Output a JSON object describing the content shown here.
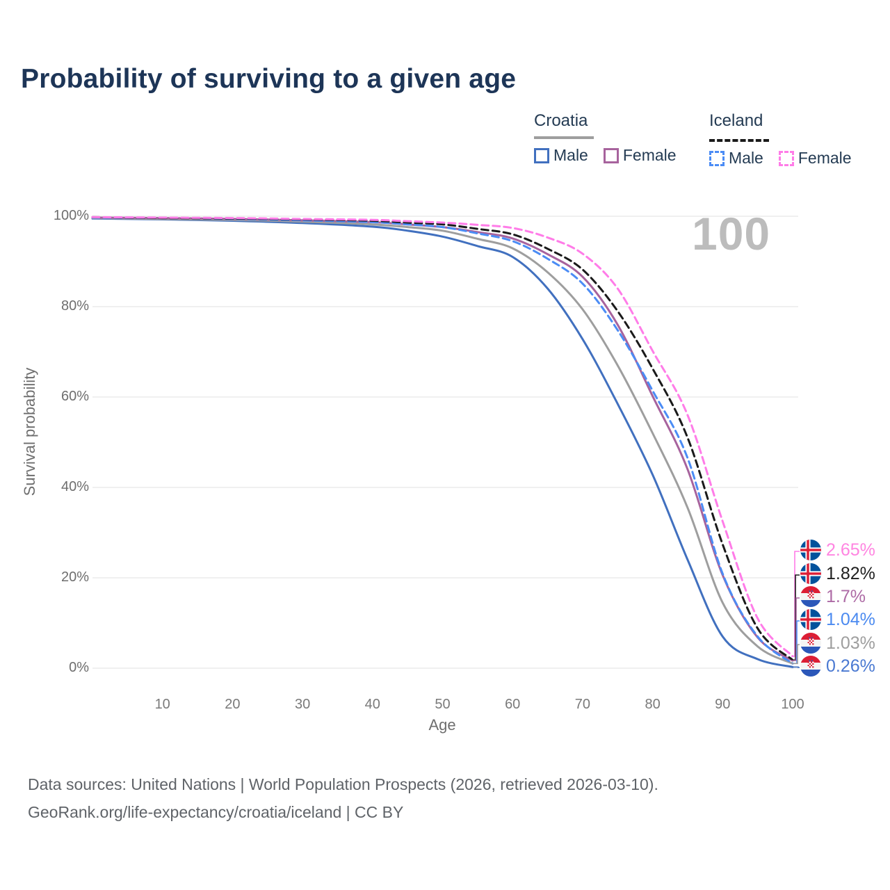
{
  "title": "Probability of surviving to a given age",
  "watermark": "100",
  "legend": {
    "groups": [
      {
        "name": "Croatia",
        "underline_style": "solid",
        "underline_color": "#9e9e9e",
        "items": [
          {
            "label": "Male",
            "color": "#4170bf",
            "dashed": false
          },
          {
            "label": "Female",
            "color": "#a7639d",
            "dashed": false
          }
        ]
      },
      {
        "name": "Iceland",
        "underline_style": "dashed",
        "underline_color": "#1a1a1a",
        "items": [
          {
            "label": "Male",
            "color": "#4b8cf5",
            "dashed": true
          },
          {
            "label": "Female",
            "color": "#ff7ce8",
            "dashed": true
          }
        ]
      }
    ]
  },
  "chart_data": {
    "type": "line",
    "title": "Probability of surviving to a given age",
    "xlabel": "Age",
    "ylabel": "Survival probability",
    "xlim": [
      0,
      100
    ],
    "ylim": [
      0,
      100
    ],
    "x_ticks": [
      10,
      20,
      30,
      40,
      50,
      60,
      70,
      80,
      90,
      100
    ],
    "y_ticks_percent": [
      0,
      20,
      40,
      60,
      80,
      100
    ],
    "grid": "horizontal-only",
    "legend_position": "top-right",
    "x": [
      0,
      10,
      20,
      30,
      40,
      45,
      50,
      55,
      60,
      65,
      70,
      75,
      80,
      85,
      90,
      95,
      100
    ],
    "series": [
      {
        "name": "Croatia Male",
        "country": "Croatia",
        "sex": "male",
        "style": "solid",
        "color": "#4170bf",
        "end_label": "0.26%",
        "values": [
          99.5,
          99.3,
          99.0,
          98.5,
          97.7,
          96.8,
          95.5,
          93.4,
          91.0,
          84.0,
          72.8,
          58.5,
          42.8,
          24.0,
          7.0,
          2.0,
          0.26
        ]
      },
      {
        "name": "Croatia",
        "country": "Croatia",
        "sex": "both",
        "style": "solid",
        "color": "#9e9e9e",
        "end_label": "1.03%",
        "values": [
          99.6,
          99.4,
          99.2,
          98.8,
          98.2,
          97.6,
          96.8,
          95.0,
          92.9,
          87.6,
          79.4,
          67.0,
          52.0,
          35.5,
          14.5,
          4.8,
          1.03
        ]
      },
      {
        "name": "Croatia Female",
        "country": "Croatia",
        "sex": "female",
        "style": "solid",
        "color": "#a7639d",
        "end_label": "1.7%",
        "values": [
          99.7,
          99.6,
          99.4,
          99.1,
          98.7,
          98.2,
          97.6,
          96.5,
          95.1,
          91.6,
          86.6,
          76.0,
          60.2,
          44.0,
          20.6,
          6.8,
          1.7
        ]
      },
      {
        "name": "Iceland Male",
        "country": "Iceland",
        "sex": "male",
        "style": "dashed",
        "color": "#4b8cf5",
        "end_label": "1.04%",
        "values": [
          99.7,
          99.6,
          99.4,
          99.1,
          98.7,
          98.2,
          97.6,
          96.2,
          94.5,
          90.6,
          85.1,
          74.8,
          61.4,
          46.5,
          20.9,
          7.0,
          1.04
        ]
      },
      {
        "name": "Iceland",
        "country": "Iceland",
        "sex": "both",
        "style": "dashed",
        "color": "#1a1a1a",
        "end_label": "1.82%",
        "values": [
          99.8,
          99.6,
          99.5,
          99.3,
          99.0,
          98.6,
          98.2,
          97.2,
          96.0,
          92.8,
          88.2,
          79.0,
          66.3,
          51.0,
          27.4,
          8.8,
          1.82
        ]
      },
      {
        "name": "Iceland Female",
        "country": "Iceland",
        "sex": "female",
        "style": "dashed",
        "color": "#ff7ce8",
        "end_label": "2.65%",
        "values": [
          99.8,
          99.7,
          99.6,
          99.4,
          99.2,
          98.9,
          98.6,
          98.1,
          97.4,
          95.3,
          91.7,
          84.0,
          70.2,
          56.0,
          32.5,
          11.0,
          2.65
        ]
      }
    ]
  },
  "end_labels": [
    {
      "flag": "iceland",
      "text": "2.65%",
      "color": "#ff85e1",
      "series": "Iceland Female"
    },
    {
      "flag": "iceland",
      "text": "1.82%",
      "color": "#1f1f1f",
      "series": "Iceland"
    },
    {
      "flag": "croatia",
      "text": "1.7%",
      "color": "#ad6aa5",
      "series": "Croatia Female"
    },
    {
      "flag": "iceland",
      "text": "1.04%",
      "color": "#4b8af0",
      "series": "Iceland Male"
    },
    {
      "flag": "croatia",
      "text": "1.03%",
      "color": "#9e9e9e",
      "series": "Croatia"
    },
    {
      "flag": "croatia",
      "text": "0.26%",
      "color": "#4a79d2",
      "series": "Croatia Male"
    }
  ],
  "footer": {
    "line1": "Data sources: United Nations | World Population Prospects (2026, retrieved 2026-03-10).",
    "line2": "GeoRank.org/life-expectancy/croatia/iceland | CC BY"
  }
}
